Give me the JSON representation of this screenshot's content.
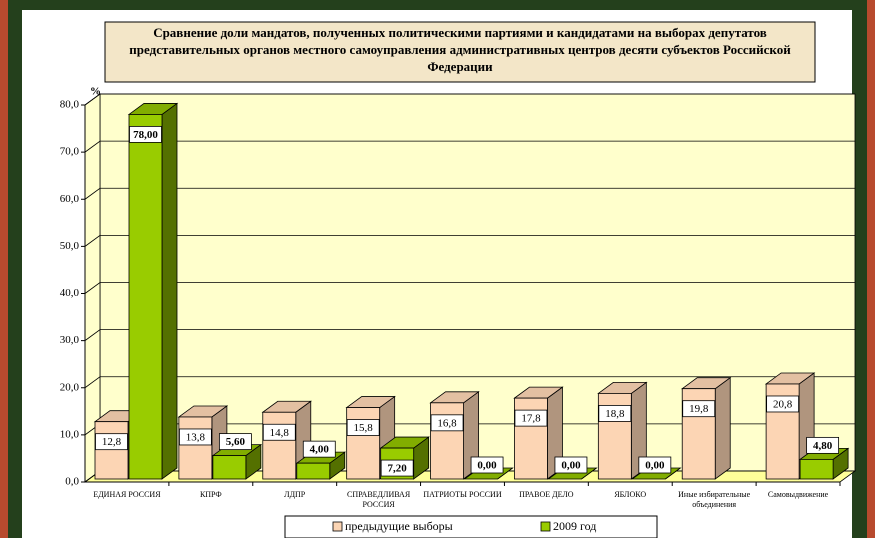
{
  "chart_data": {
    "type": "bar3d",
    "title": "Сравнение доли мандатов, полученных политическими партиями и кандидатами на выборах депутатов представительных органов местного самоуправления административных центров десяти субъектов Российской Федерации",
    "y_label": "%",
    "categories": [
      "ЕДИНАЯ РОССИЯ",
      "КПРФ",
      "ЛДПР",
      "СПРАВЕДЛИВАЯ РОССИЯ",
      "ПАТРИОТЫ РОССИИ",
      "ПРАВОЕ ДЕЛО",
      "ЯБЛОКО",
      "Иные избирательные объединения",
      "Самовыдвижение"
    ],
    "series": [
      {
        "name": "предыдущие выборы",
        "color": "#fcd5b4",
        "values": [
          12.8,
          13.8,
          14.8,
          15.8,
          16.8,
          17.8,
          18.8,
          19.8,
          20.8
        ],
        "value_labels": [
          "12,8",
          "13,8",
          "14,8",
          "15,8",
          "16,8",
          "17,8",
          "18,8",
          "19,8",
          "20,8"
        ]
      },
      {
        "name": "2009 год",
        "color": "#99cc00",
        "values": [
          78,
          5.6,
          4,
          7.2,
          0,
          0,
          0,
          null,
          4.8
        ],
        "value_labels": [
          "78,00",
          "5,60",
          "4,00",
          "7,20",
          "0,00",
          "0,00",
          "0,00",
          null,
          "4,80"
        ]
      }
    ],
    "ylim": [
      0,
      80
    ],
    "yticks": [
      {
        "value": 0,
        "label": "0,0"
      },
      {
        "value": 10,
        "label": "10,0"
      },
      {
        "value": 20,
        "label": "20,0"
      },
      {
        "value": 30,
        "label": "30,0"
      },
      {
        "value": 40,
        "label": "40,0"
      },
      {
        "value": 50,
        "label": "50,0"
      },
      {
        "value": 60,
        "label": "60,0"
      },
      {
        "value": 70,
        "label": "70,0"
      },
      {
        "value": 80,
        "label": "80,0"
      }
    ],
    "grid": true
  }
}
